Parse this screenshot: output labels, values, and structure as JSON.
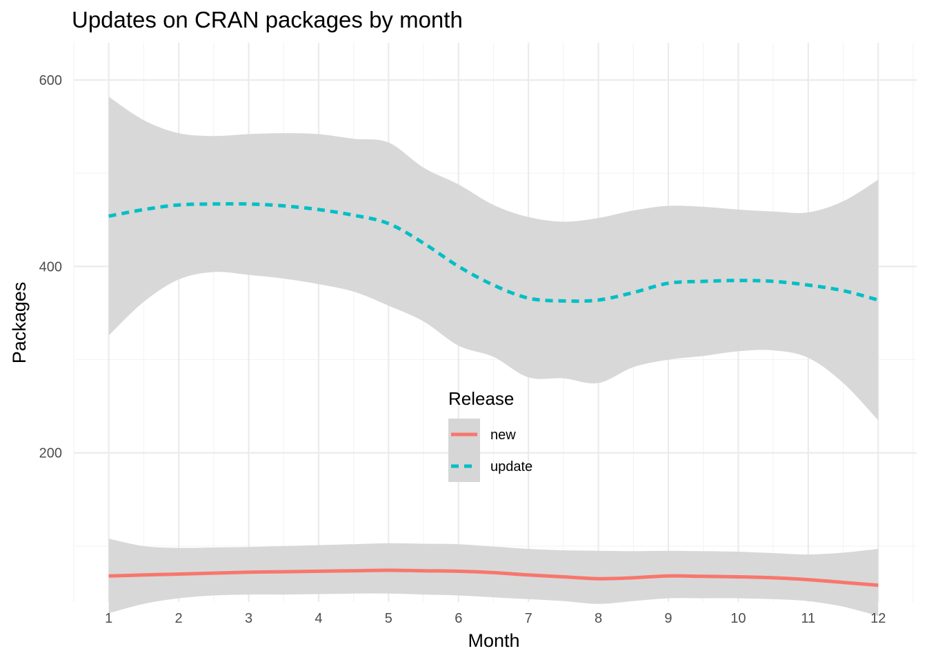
{
  "chart_data": {
    "type": "line",
    "title": "Updates on CRAN packages by month",
    "xlabel": "Month",
    "ylabel": "Packages",
    "x": [
      1,
      2,
      3,
      4,
      5,
      6,
      7,
      8,
      9,
      10,
      11,
      12
    ],
    "x_ticks": [
      "1",
      "2",
      "3",
      "4",
      "5",
      "6",
      "7",
      "8",
      "9",
      "10",
      "11",
      "12"
    ],
    "y_ticks": [
      "200",
      "400",
      "600"
    ],
    "xlim": [
      0.5,
      12.55
    ],
    "ylim": [
      40,
      640
    ],
    "grid": true,
    "legend_position": "center",
    "legend_title": "Release",
    "band_color": "#d6d6d6",
    "series": [
      {
        "name": "new",
        "color": "#f8766d",
        "dash": "solid",
        "x": [
          1,
          1.5,
          2,
          2.5,
          3,
          3.5,
          4,
          4.5,
          5,
          5.5,
          6,
          6.5,
          7,
          7.5,
          8,
          8.5,
          9,
          9.5,
          10,
          10.5,
          11,
          11.5,
          12
        ],
        "values": [
          68,
          69,
          70,
          71,
          72,
          72.5,
          73,
          73.5,
          74,
          73.5,
          73,
          71.5,
          69,
          67,
          65,
          66,
          68,
          67.5,
          67,
          66,
          64,
          61,
          58
        ],
        "lower": [
          28,
          38,
          44,
          47,
          48,
          48,
          48.5,
          49,
          49,
          48,
          47,
          45,
          43,
          41,
          38,
          41,
          44,
          44,
          44,
          43,
          41,
          35,
          25
        ],
        "upper": [
          108,
          100,
          98,
          98.5,
          99,
          100,
          101,
          102,
          103,
          102.5,
          102,
          99.5,
          97,
          95.5,
          95,
          94.5,
          95,
          94.5,
          94,
          92.5,
          91,
          93,
          97
        ]
      },
      {
        "name": "update",
        "color": "#00bfc4",
        "dash": "dashed",
        "x": [
          1,
          1.5,
          2,
          2.5,
          3,
          3.5,
          4,
          4.5,
          5,
          5.5,
          6,
          6.5,
          7,
          7.5,
          8,
          8.5,
          9,
          9.5,
          10,
          10.5,
          11,
          11.5,
          12
        ],
        "values": [
          454,
          461,
          466,
          467,
          467,
          465,
          461,
          455,
          446,
          425,
          400,
          380,
          366,
          363,
          364,
          372,
          382,
          384,
          385,
          384,
          380,
          374,
          364
        ],
        "lower": [
          326,
          362,
          386,
          394,
          391,
          387,
          381,
          373,
          358,
          341,
          315,
          303,
          281,
          280,
          275,
          292,
          300,
          304,
          309,
          310,
          302,
          275,
          235
        ],
        "upper": [
          582,
          557,
          543,
          540,
          542,
          543,
          542,
          537,
          533,
          506,
          488,
          466,
          453,
          448,
          452,
          460,
          465,
          464,
          461,
          459,
          458,
          470,
          493
        ]
      }
    ]
  }
}
